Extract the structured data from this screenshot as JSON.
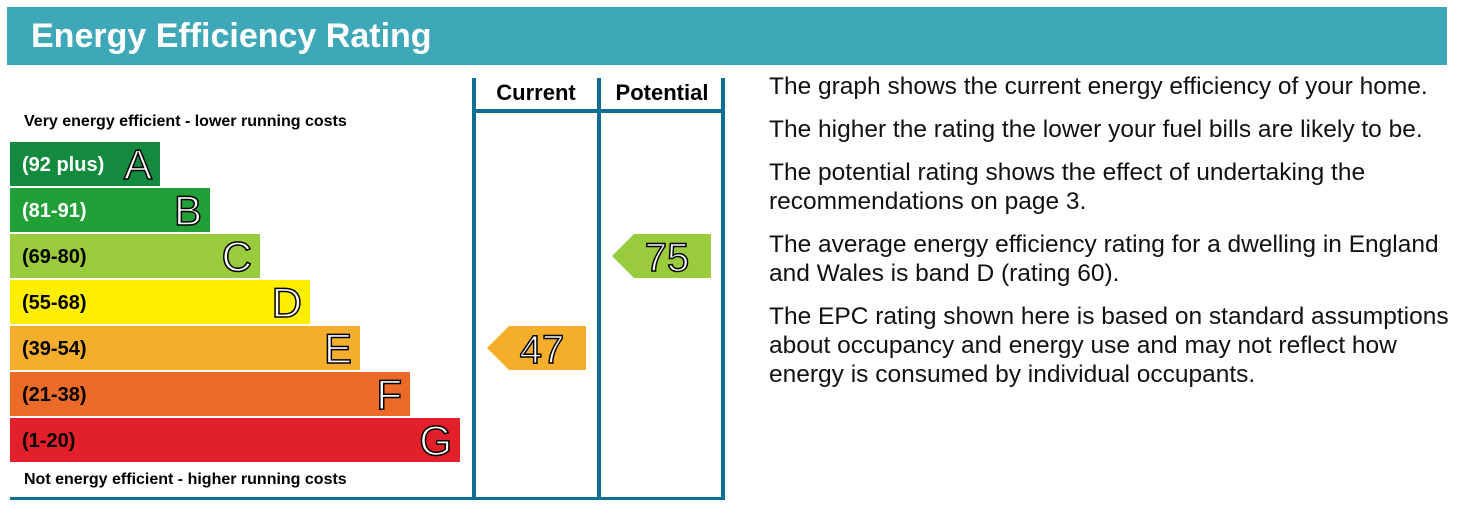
{
  "header": {
    "title": "Energy Efficiency Rating"
  },
  "top_label": "Very energy efficient - lower running costs",
  "bottom_label": "Not energy efficient - higher running costs",
  "bands": [
    {
      "range": "(92 plus)",
      "letter": "A",
      "color": "#138a3e",
      "text_color": "#ffffff"
    },
    {
      "range": "(81-91)",
      "letter": "B",
      "color": "#22a038",
      "text_color": "#ffffff"
    },
    {
      "range": "(69-80)",
      "letter": "C",
      "color": "#9acb3c",
      "text_color": "#000000"
    },
    {
      "range": "(55-68)",
      "letter": "D",
      "color": "#ffee00",
      "text_color": "#000000"
    },
    {
      "range": "(39-54)",
      "letter": "E",
      "color": "#f4ae2b",
      "text_color": "#000000"
    },
    {
      "range": "(21-38)",
      "letter": "F",
      "color": "#ec6a27",
      "text_color": "#000000"
    },
    {
      "range": "(1-20)",
      "letter": "G",
      "color": "#e2202a",
      "text_color": "#000000"
    }
  ],
  "columns": [
    "Current",
    "Potential"
  ],
  "ratings": [
    47,
    75
  ],
  "paragraphs": [
    "The graph shows the current energy efficiency of your home.",
    "The higher the rating the lower your fuel bills are likely to be.",
    "The potential rating shows the effect of undertaking the recommendations on page 3.",
    "The average energy efficiency rating for a dwelling in England and Wales is band D (rating 60).",
    "The EPC rating shown here is based on standard assumptions about occupancy and energy use and may not reflect how energy is consumed by individual occupants."
  ]
}
